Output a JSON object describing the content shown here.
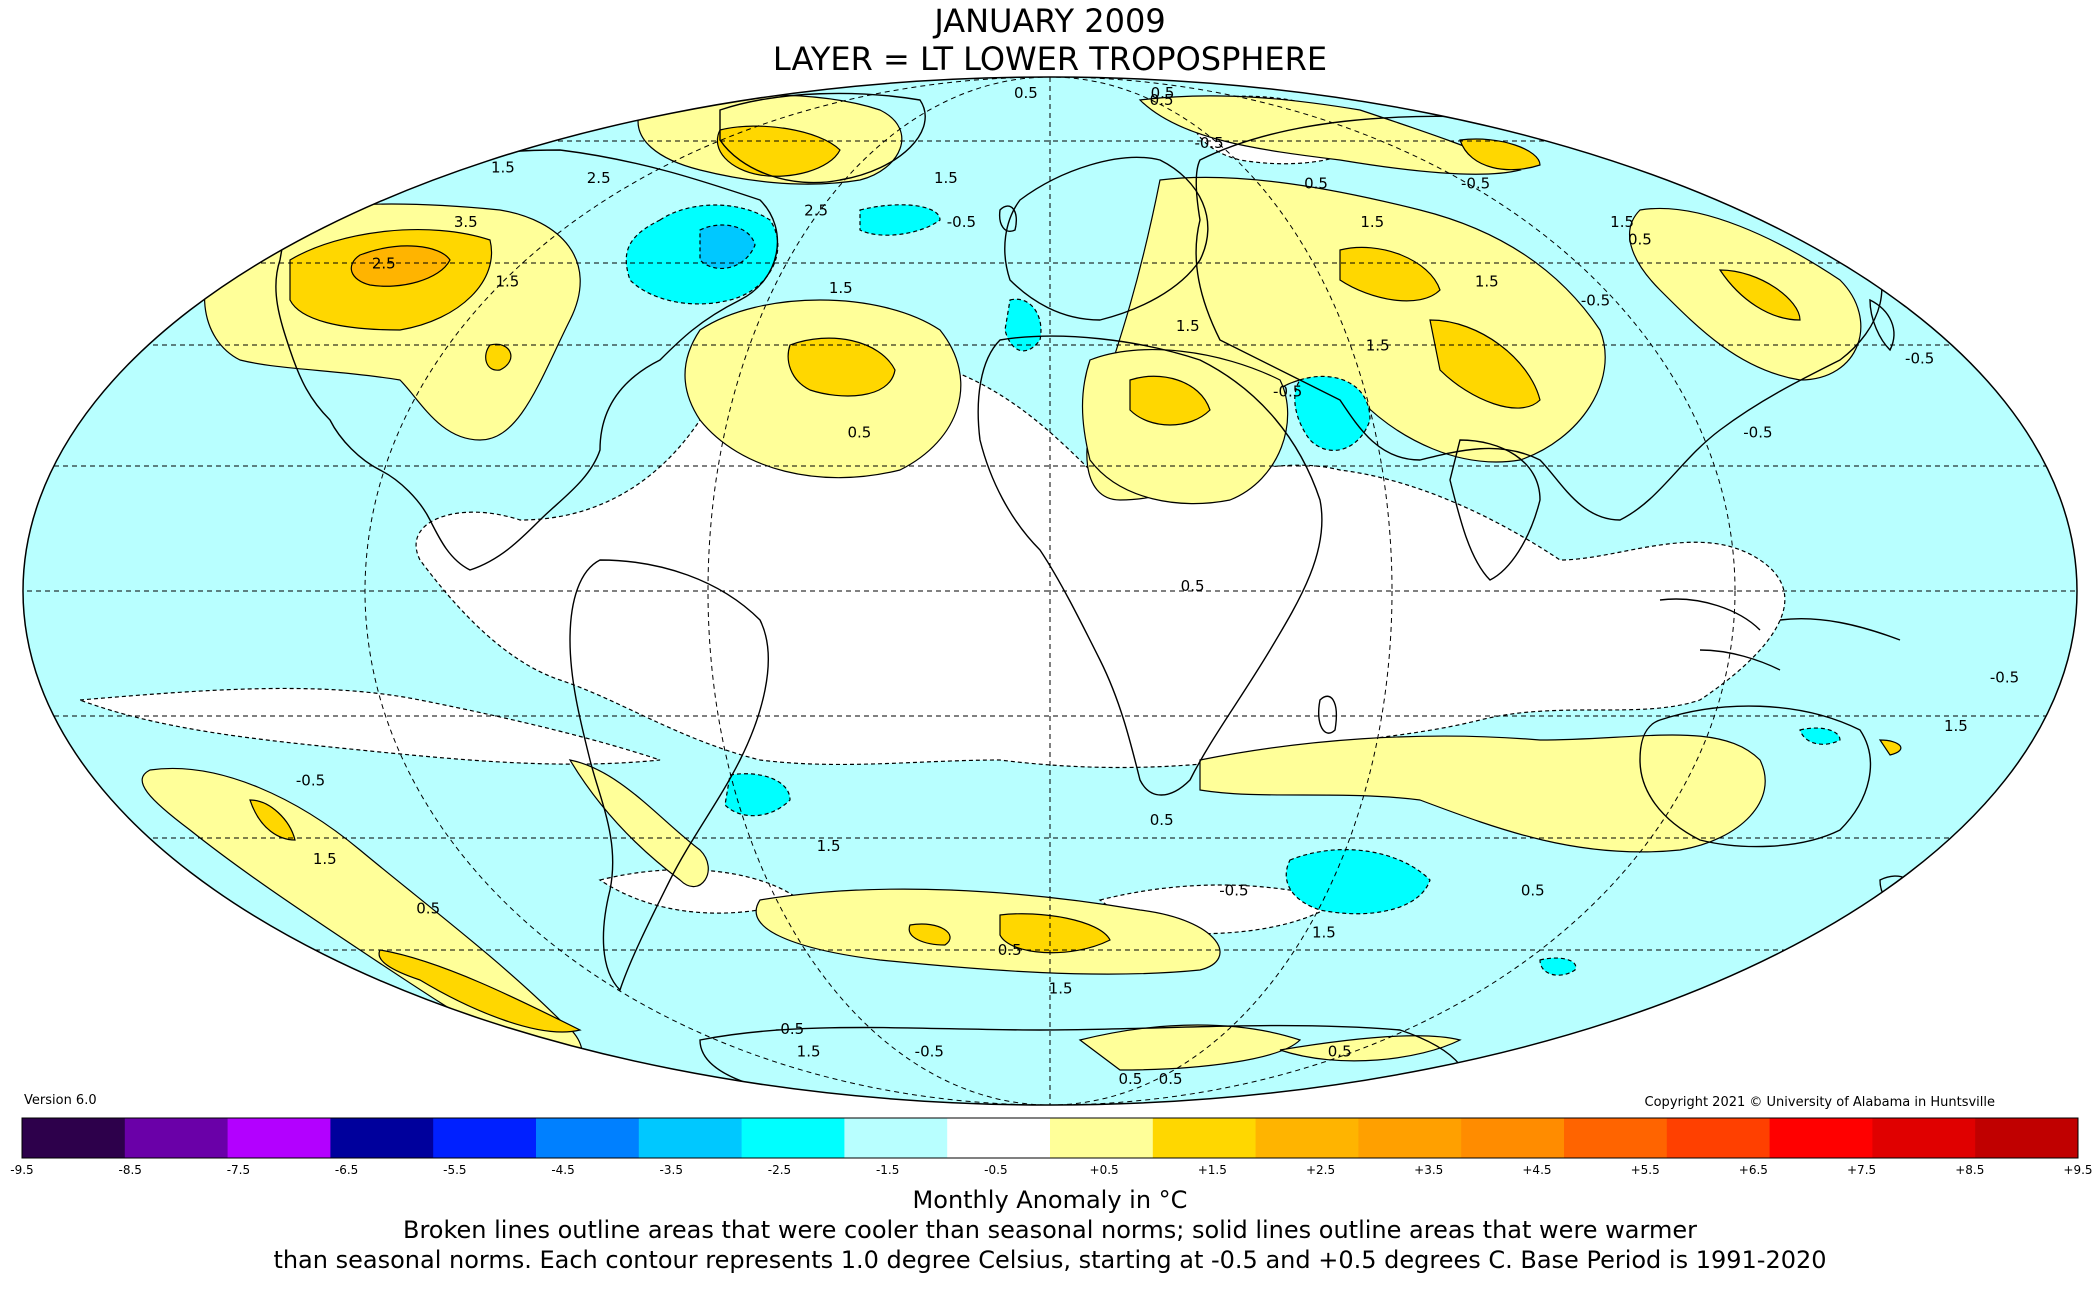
{
  "title": {
    "line1": "JANUARY 2009",
    "line2": "LAYER = LT LOWER TROPOSPHERE"
  },
  "version": "Version 6.0",
  "copyright": "Copyright 2021 © University of Alabama in Huntsville",
  "colorbar": {
    "ticks": [
      "-9.5",
      "-8.5",
      "-7.5",
      "-6.5",
      "-5.5",
      "-4.5",
      "-3.5",
      "-2.5",
      "-1.5",
      "-0.5",
      "+0.5",
      "+1.5",
      "+2.5",
      "+3.5",
      "+4.5",
      "+5.5",
      "+6.5",
      "+7.5",
      "+8.5",
      "+9.5"
    ],
    "colors": [
      "#2d004b",
      "#6a00a8",
      "#b300ff",
      "#00009c",
      "#0020ff",
      "#0080ff",
      "#00c8ff",
      "#00ffff",
      "#b8ffff",
      "#ffffff",
      "#ffff99",
      "#ffd700",
      "#ffb400",
      "#ffa000",
      "#ff8c00",
      "#ff6400",
      "#ff4000",
      "#ff0000",
      "#e00000",
      "#c00000"
    ]
  },
  "unit_label": "Monthly Anomaly in °C",
  "note": {
    "line1": "Broken lines outline areas that were cooler than seasonal norms; solid lines outline areas that were warmer",
    "line2": "than seasonal norms. Each contour represents 1.0 degree Celsius, starting at -0.5 and +0.5 degrees C. Base Period is 1991-2020"
  },
  "map": {
    "projection": "mollweide",
    "background": "#b8ffff",
    "contour_labels": [
      {
        "text": "0.5",
        "lon": -15,
        "lat": 82
      },
      {
        "text": "0.5",
        "lon": 60,
        "lat": 80
      },
      {
        "text": "0.5",
        "lon": 70,
        "lat": 82
      },
      {
        "text": "-0.5",
        "lon": 55,
        "lat": 70
      },
      {
        "text": "0.5",
        "lon": 75,
        "lat": 62
      },
      {
        "text": "-0.5",
        "lon": 120,
        "lat": 62
      },
      {
        "text": "1.5",
        "lon": -165,
        "lat": 65
      },
      {
        "text": "2.5",
        "lon": -130,
        "lat": 63
      },
      {
        "text": "3.5",
        "lon": -145,
        "lat": 55
      },
      {
        "text": "2.5",
        "lon": -150,
        "lat": 48
      },
      {
        "text": "1.5",
        "lon": -118,
        "lat": 45
      },
      {
        "text": "2.5",
        "lon": -60,
        "lat": 57
      },
      {
        "text": "1.5",
        "lon": -30,
        "lat": 63
      },
      {
        "text": "-0.5",
        "lon": -22,
        "lat": 55
      },
      {
        "text": "1.5",
        "lon": -45,
        "lat": 44
      },
      {
        "text": "0.5",
        "lon": -35,
        "lat": 22
      },
      {
        "text": "1.5",
        "lon": 28,
        "lat": 38
      },
      {
        "text": "1.5",
        "lon": 80,
        "lat": 55
      },
      {
        "text": "1.5",
        "lon": 95,
        "lat": 45
      },
      {
        "text": "-0.5",
        "lon": 115,
        "lat": 42
      },
      {
        "text": "0.5",
        "lon": 140,
        "lat": 52
      },
      {
        "text": "1.5",
        "lon": 142,
        "lat": 55
      },
      {
        "text": "-0.5",
        "lon": 170,
        "lat": 33
      },
      {
        "text": "-0.5",
        "lon": 130,
        "lat": 22
      },
      {
        "text": "-0.5",
        "lon": 45,
        "lat": 28
      },
      {
        "text": "1.5",
        "lon": 65,
        "lat": 35
      },
      {
        "text": "0.5",
        "lon": 25,
        "lat": 0
      },
      {
        "text": "-0.5",
        "lon": 170,
        "lat": -13
      },
      {
        "text": "1.5",
        "lon": 165,
        "lat": -20
      },
      {
        "text": "-0.5",
        "lon": -140,
        "lat": -28
      },
      {
        "text": "1.5",
        "lon": -150,
        "lat": -40
      },
      {
        "text": "0.5",
        "lon": -140,
        "lat": -48
      },
      {
        "text": "1.5",
        "lon": -45,
        "lat": -38
      },
      {
        "text": "0.5",
        "lon": 22,
        "lat": -34
      },
      {
        "text": "-0.5",
        "lon": 40,
        "lat": -45
      },
      {
        "text": "0.5",
        "lon": 105,
        "lat": -45
      },
      {
        "text": "1.5",
        "lon": 65,
        "lat": -52
      },
      {
        "text": "0.5",
        "lon": -10,
        "lat": -55
      },
      {
        "text": "1.5",
        "lon": 3,
        "lat": -62
      },
      {
        "text": "-0.5",
        "lon": -90,
        "lat": -70
      },
      {
        "text": "1.5",
        "lon": -100,
        "lat": -75
      },
      {
        "text": "-0.5",
        "lon": -50,
        "lat": -75
      },
      {
        "text": "0.5",
        "lon": 120,
        "lat": -75
      },
      {
        "text": "0.5",
        "lon": 50,
        "lat": -82
      },
      {
        "text": "0.5",
        "lon": 75,
        "lat": -82
      }
    ]
  }
}
